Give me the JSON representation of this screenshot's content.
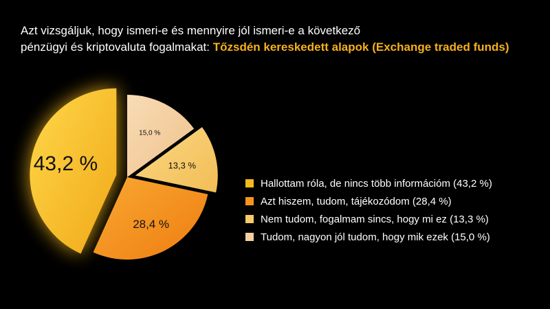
{
  "title": {
    "line1": "Azt vizsgáljuk, hogy ismeri-e és mennyire jól ismeri-e a következő",
    "line2_prefix": "pénzügyi és kriptovaluta fogalmakat: ",
    "highlight": "Tőzsdén kereskedett alapok (Exchange traded funds)"
  },
  "colors": {
    "highlight": "#f6b01c",
    "background": "#000000"
  },
  "chart_data": {
    "type": "pie",
    "title": "",
    "slices": [
      {
        "name": "Hallottam róla, de nincs több információm",
        "value": 43.2,
        "label": "43,2 %",
        "legend": "Hallottam róla, de nincs több információm (43,2 %)",
        "color": "#f6b91e",
        "exploded": true
      },
      {
        "name": "Azt hiszem, tudom, tájékozódom",
        "value": 28.4,
        "label": "28,4 %",
        "legend": "Azt hiszem, tudom, tájékozódom (28,4 %)",
        "color": "#f7941d",
        "exploded": false
      },
      {
        "name": "Nem tudom, fogalmam sincs, hogy mi ez",
        "value": 13.3,
        "label": "13,3 %",
        "legend": "Nem tudom, fogalmam sincs, hogy mi ez (13,3 %)",
        "color": "#f8cb6a",
        "exploded": true
      },
      {
        "name": "Tudom, nagyon jól tudom, hogy mik ezek",
        "value": 15.0,
        "label": "15,0 %",
        "legend": "Tudom, nagyon jól tudom, hogy mik ezek (15,0 %)",
        "color": "#f5cfa0",
        "exploded": false
      }
    ]
  }
}
